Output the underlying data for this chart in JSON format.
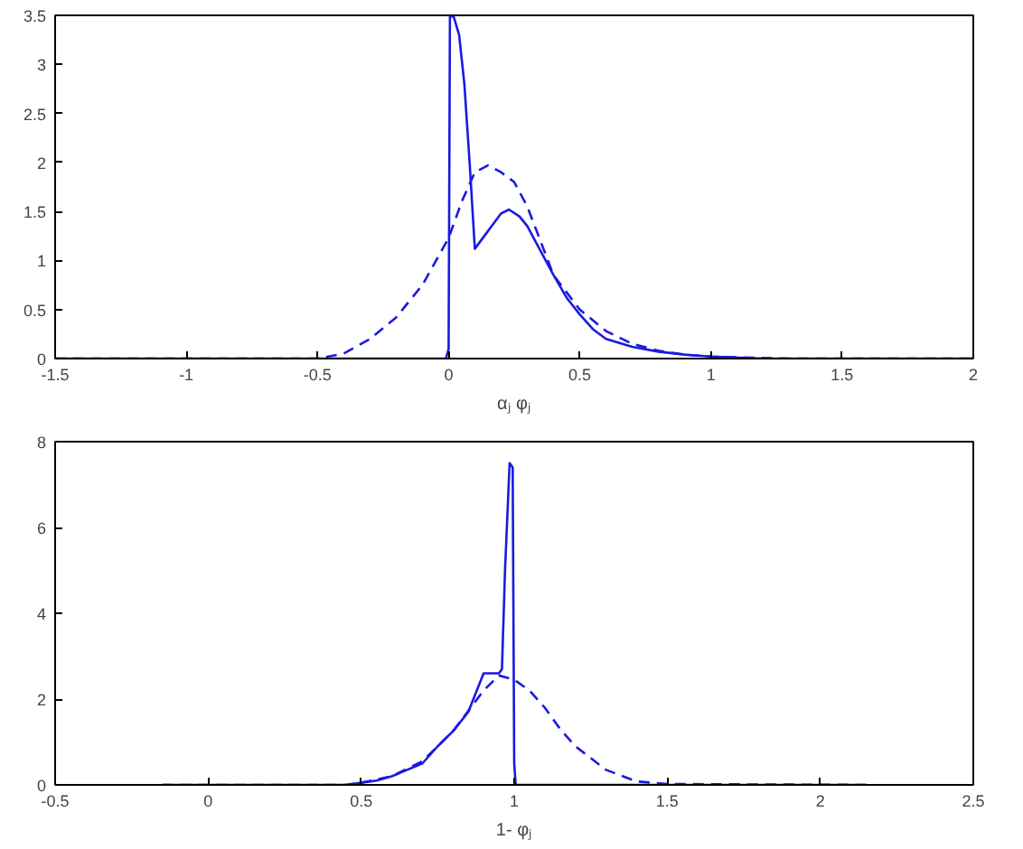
{
  "chart_data": [
    {
      "type": "line",
      "xlabel": "αⱼ φⱼ",
      "xlim": [
        -1.5,
        2
      ],
      "ylim": [
        0,
        3.5
      ],
      "xticks": [
        -1.5,
        -1,
        -0.5,
        0,
        0.5,
        1,
        1.5,
        2
      ],
      "yticks": [
        0,
        0.5,
        1,
        1.5,
        2,
        2.5,
        3,
        3.5
      ],
      "grid": false,
      "series": [
        {
          "color": "#1a1ae0",
          "line_style": "solid",
          "x": [
            -1.5,
            -0.01,
            0,
            0.005,
            0.02,
            0.04,
            0.06,
            0.08,
            0.1,
            0.15,
            0.2,
            0.23,
            0.27,
            0.3,
            0.35,
            0.4,
            0.45,
            0.5,
            0.55,
            0.6,
            0.7,
            0.8,
            0.9,
            1.0,
            1.2,
            2
          ],
          "values": [
            0,
            0,
            0.1,
            3.5,
            3.48,
            3.3,
            2.8,
            2.0,
            1.12,
            1.3,
            1.48,
            1.52,
            1.45,
            1.35,
            1.1,
            0.85,
            0.62,
            0.45,
            0.3,
            0.2,
            0.12,
            0.07,
            0.04,
            0.02,
            0,
            0
          ]
        },
        {
          "color": "#1a1ae0",
          "line_style": "dashed",
          "x": [
            -1.5,
            -0.5,
            -0.4,
            -0.3,
            -0.2,
            -0.1,
            0,
            0.05,
            0.1,
            0.15,
            0.2,
            0.25,
            0.3,
            0.35,
            0.4,
            0.5,
            0.6,
            0.7,
            0.8,
            0.9,
            1.0,
            1.3,
            2
          ],
          "values": [
            0,
            0,
            0.05,
            0.2,
            0.42,
            0.75,
            1.23,
            1.6,
            1.9,
            1.97,
            1.9,
            1.8,
            1.55,
            1.2,
            0.85,
            0.5,
            0.28,
            0.15,
            0.08,
            0.04,
            0.02,
            0,
            0
          ]
        }
      ]
    },
    {
      "type": "line",
      "xlabel": "1- φⱼ",
      "xlim": [
        -0.5,
        2.5
      ],
      "ylim": [
        0,
        8
      ],
      "xticks": [
        -0.5,
        0,
        0.5,
        1,
        1.5,
        2,
        2.5
      ],
      "yticks": [
        0,
        2,
        4,
        6,
        8
      ],
      "grid": false,
      "series": [
        {
          "color": "#1a1ae0",
          "line_style": "solid",
          "x": [
            -0.15,
            0.45,
            0.5,
            0.55,
            0.6,
            0.65,
            0.7,
            0.75,
            0.8,
            0.85,
            0.9,
            0.95,
            0.96,
            0.97,
            0.985,
            0.995,
            1.0,
            1.005,
            2.15
          ],
          "values": [
            0,
            0,
            0.05,
            0.1,
            0.2,
            0.35,
            0.5,
            0.9,
            1.25,
            1.7,
            2.6,
            2.6,
            2.7,
            5,
            7.5,
            7.4,
            0.5,
            0,
            0
          ]
        },
        {
          "color": "#1a1ae0",
          "line_style": "dashed",
          "x": [
            -0.15,
            0.45,
            0.5,
            0.6,
            0.7,
            0.8,
            0.9,
            0.95,
            1.0,
            1.05,
            1.1,
            1.15,
            1.2,
            1.3,
            1.4,
            1.5,
            2.15
          ],
          "values": [
            0,
            0,
            0.05,
            0.2,
            0.55,
            1.25,
            2.2,
            2.55,
            2.45,
            2.2,
            1.8,
            1.3,
            0.9,
            0.35,
            0.08,
            0.02,
            0
          ]
        }
      ]
    }
  ]
}
